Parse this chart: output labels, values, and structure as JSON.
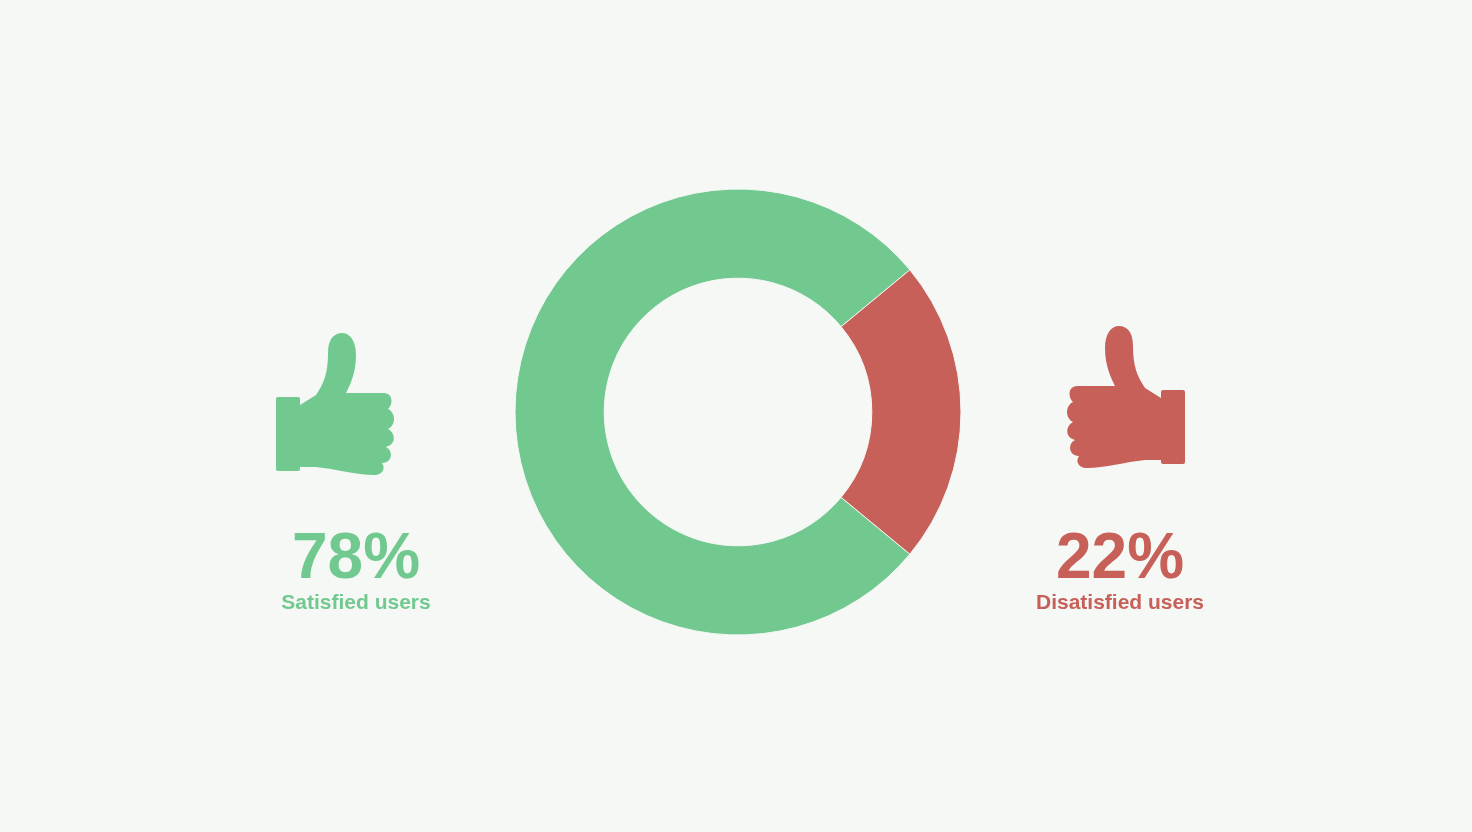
{
  "chart_data": {
    "type": "donut",
    "categories": [
      "Satisfied users",
      "Disatisfied users"
    ],
    "values": [
      78,
      22
    ],
    "colors": [
      "#72c990",
      "#c8605a"
    ],
    "value_labels": [
      "78%",
      "22%"
    ]
  }
}
